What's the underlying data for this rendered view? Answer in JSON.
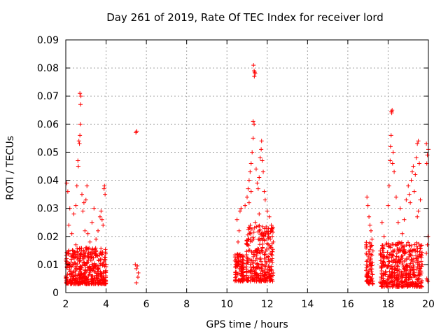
{
  "chart_data": {
    "type": "scatter",
    "title": "Day 261 of 2019, Rate Of TEC Index for receiver lord",
    "xlabel": "GPS time / hours",
    "ylabel": "ROTI / TECUs",
    "xlim": [
      2,
      20
    ],
    "ylim": [
      0,
      0.09
    ],
    "xticks": [
      2,
      4,
      6,
      8,
      10,
      12,
      14,
      16,
      18,
      20
    ],
    "xtick_labels": [
      "2",
      "4",
      "6",
      "8",
      "10",
      "12",
      "14",
      "16",
      "18",
      "20"
    ],
    "yticks": [
      0,
      0.01,
      0.02,
      0.03,
      0.04,
      0.05,
      0.06,
      0.07,
      0.08,
      0.09
    ],
    "ytick_labels": [
      "0",
      "0.01",
      "0.02",
      "0.03",
      "0.04",
      "0.05",
      "0.06",
      "0.07",
      "0.08",
      "0.09"
    ],
    "grid": true,
    "marker": "+",
    "color": "#ff0000",
    "series": [
      {
        "name": "",
        "points": [
          [
            2.05,
            0.039
          ],
          [
            2.1,
            0.036
          ],
          [
            2.2,
            0.03
          ],
          [
            2.15,
            0.024
          ],
          [
            2.3,
            0.021
          ],
          [
            2.4,
            0.028
          ],
          [
            2.5,
            0.031
          ],
          [
            2.55,
            0.038
          ],
          [
            2.6,
            0.047
          ],
          [
            2.62,
            0.045
          ],
          [
            2.65,
            0.054
          ],
          [
            2.68,
            0.053
          ],
          [
            2.7,
            0.056
          ],
          [
            2.72,
            0.06
          ],
          [
            2.75,
            0.07
          ],
          [
            2.7,
            0.071
          ],
          [
            2.73,
            0.067
          ],
          [
            2.8,
            0.035
          ],
          [
            2.85,
            0.029
          ],
          [
            2.9,
            0.032
          ],
          [
            3.0,
            0.033
          ],
          [
            3.05,
            0.038
          ],
          [
            2.95,
            0.022
          ],
          [
            3.1,
            0.021
          ],
          [
            3.2,
            0.018
          ],
          [
            3.3,
            0.025
          ],
          [
            3.4,
            0.03
          ],
          [
            3.5,
            0.019
          ],
          [
            3.6,
            0.022
          ],
          [
            3.7,
            0.027
          ],
          [
            3.75,
            0.029
          ],
          [
            3.8,
            0.026
          ],
          [
            3.85,
            0.024
          ],
          [
            3.9,
            0.037
          ],
          [
            3.92,
            0.038
          ],
          [
            3.95,
            0.035
          ],
          [
            2.5,
            0.017
          ],
          [
            3.0,
            0.016
          ],
          [
            3.5,
            0.015
          ],
          [
            5.48,
            0.057
          ],
          [
            5.52,
            0.0575
          ],
          [
            5.5,
            0.0085
          ],
          [
            5.55,
            0.0095
          ],
          [
            5.45,
            0.01
          ],
          [
            5.5,
            0.0035
          ],
          [
            5.6,
            0.007
          ],
          [
            5.58,
            0.0055
          ],
          [
            10.5,
            0.026
          ],
          [
            10.6,
            0.022
          ],
          [
            10.55,
            0.018
          ],
          [
            10.65,
            0.029
          ],
          [
            10.7,
            0.03
          ],
          [
            10.8,
            0.013
          ],
          [
            10.9,
            0.031
          ],
          [
            11.0,
            0.034
          ],
          [
            11.05,
            0.037
          ],
          [
            11.1,
            0.04
          ],
          [
            11.15,
            0.043
          ],
          [
            11.2,
            0.046
          ],
          [
            11.25,
            0.05
          ],
          [
            11.3,
            0.055
          ],
          [
            11.35,
            0.06
          ],
          [
            11.3,
            0.061
          ],
          [
            11.35,
            0.079
          ],
          [
            11.38,
            0.0785
          ],
          [
            11.32,
            0.081
          ],
          [
            11.4,
            0.078
          ],
          [
            11.36,
            0.077
          ],
          [
            11.45,
            0.044
          ],
          [
            11.5,
            0.039
          ],
          [
            11.55,
            0.037
          ],
          [
            11.6,
            0.041
          ],
          [
            11.65,
            0.048
          ],
          [
            11.7,
            0.051
          ],
          [
            11.72,
            0.054
          ],
          [
            11.75,
            0.047
          ],
          [
            11.8,
            0.043
          ],
          [
            11.85,
            0.036
          ],
          [
            11.9,
            0.033
          ],
          [
            12.0,
            0.029
          ],
          [
            12.1,
            0.027
          ],
          [
            12.2,
            0.024
          ],
          [
            12.25,
            0.02
          ],
          [
            12.3,
            0.018
          ],
          [
            11.1,
            0.032
          ],
          [
            11.2,
            0.036
          ],
          [
            11.4,
            0.025
          ],
          [
            11.6,
            0.028
          ],
          [
            11.8,
            0.021
          ],
          [
            16.95,
            0.034
          ],
          [
            17.0,
            0.031
          ],
          [
            17.05,
            0.027
          ],
          [
            17.1,
            0.024
          ],
          [
            17.15,
            0.022
          ],
          [
            17.2,
            0.019
          ],
          [
            17.7,
            0.025
          ],
          [
            17.8,
            0.02
          ],
          [
            17.9,
            0.017
          ],
          [
            18.0,
            0.031
          ],
          [
            18.05,
            0.038
          ],
          [
            18.1,
            0.047
          ],
          [
            18.12,
            0.052
          ],
          [
            18.15,
            0.056
          ],
          [
            18.17,
            0.0645
          ],
          [
            18.2,
            0.065
          ],
          [
            18.18,
            0.064
          ],
          [
            18.22,
            0.046
          ],
          [
            18.25,
            0.05
          ],
          [
            18.3,
            0.043
          ],
          [
            18.4,
            0.034
          ],
          [
            18.5,
            0.025
          ],
          [
            18.6,
            0.03
          ],
          [
            18.7,
            0.021
          ],
          [
            18.8,
            0.026
          ],
          [
            18.9,
            0.033
          ],
          [
            19.0,
            0.038
          ],
          [
            19.05,
            0.035
          ],
          [
            19.1,
            0.032
          ],
          [
            19.15,
            0.04
          ],
          [
            19.2,
            0.043
          ],
          [
            19.25,
            0.045
          ],
          [
            19.3,
            0.036
          ],
          [
            19.35,
            0.042
          ],
          [
            19.4,
            0.048
          ],
          [
            19.45,
            0.053
          ],
          [
            19.5,
            0.054
          ],
          [
            19.55,
            0.046
          ],
          [
            19.6,
            0.033
          ],
          [
            19.5,
            0.029
          ],
          [
            19.45,
            0.027
          ],
          [
            19.9,
            0.053
          ],
          [
            19.95,
            0.049
          ],
          [
            20.0,
            0.051
          ],
          [
            19.92,
            0.046
          ],
          [
            19.98,
            0.02
          ],
          [
            19.95,
            0.017
          ],
          [
            19.9,
            0.014
          ],
          [
            19.92,
            0.005
          ],
          [
            19.97,
            0.004
          ],
          [
            19.94,
            0.0045
          ]
        ]
      }
    ],
    "dense_clusters": [
      {
        "x_range": [
          2.0,
          4.0
        ],
        "y_range": [
          0.003,
          0.016
        ]
      },
      {
        "x_range": [
          10.4,
          10.85
        ],
        "y_range": [
          0.004,
          0.014
        ]
      },
      {
        "x_range": [
          10.95,
          12.3
        ],
        "y_range": [
          0.004,
          0.024
        ]
      },
      {
        "x_range": [
          16.9,
          17.25
        ],
        "y_range": [
          0.003,
          0.018
        ]
      },
      {
        "x_range": [
          17.6,
          19.7
        ],
        "y_range": [
          0.002,
          0.018
        ]
      }
    ]
  }
}
